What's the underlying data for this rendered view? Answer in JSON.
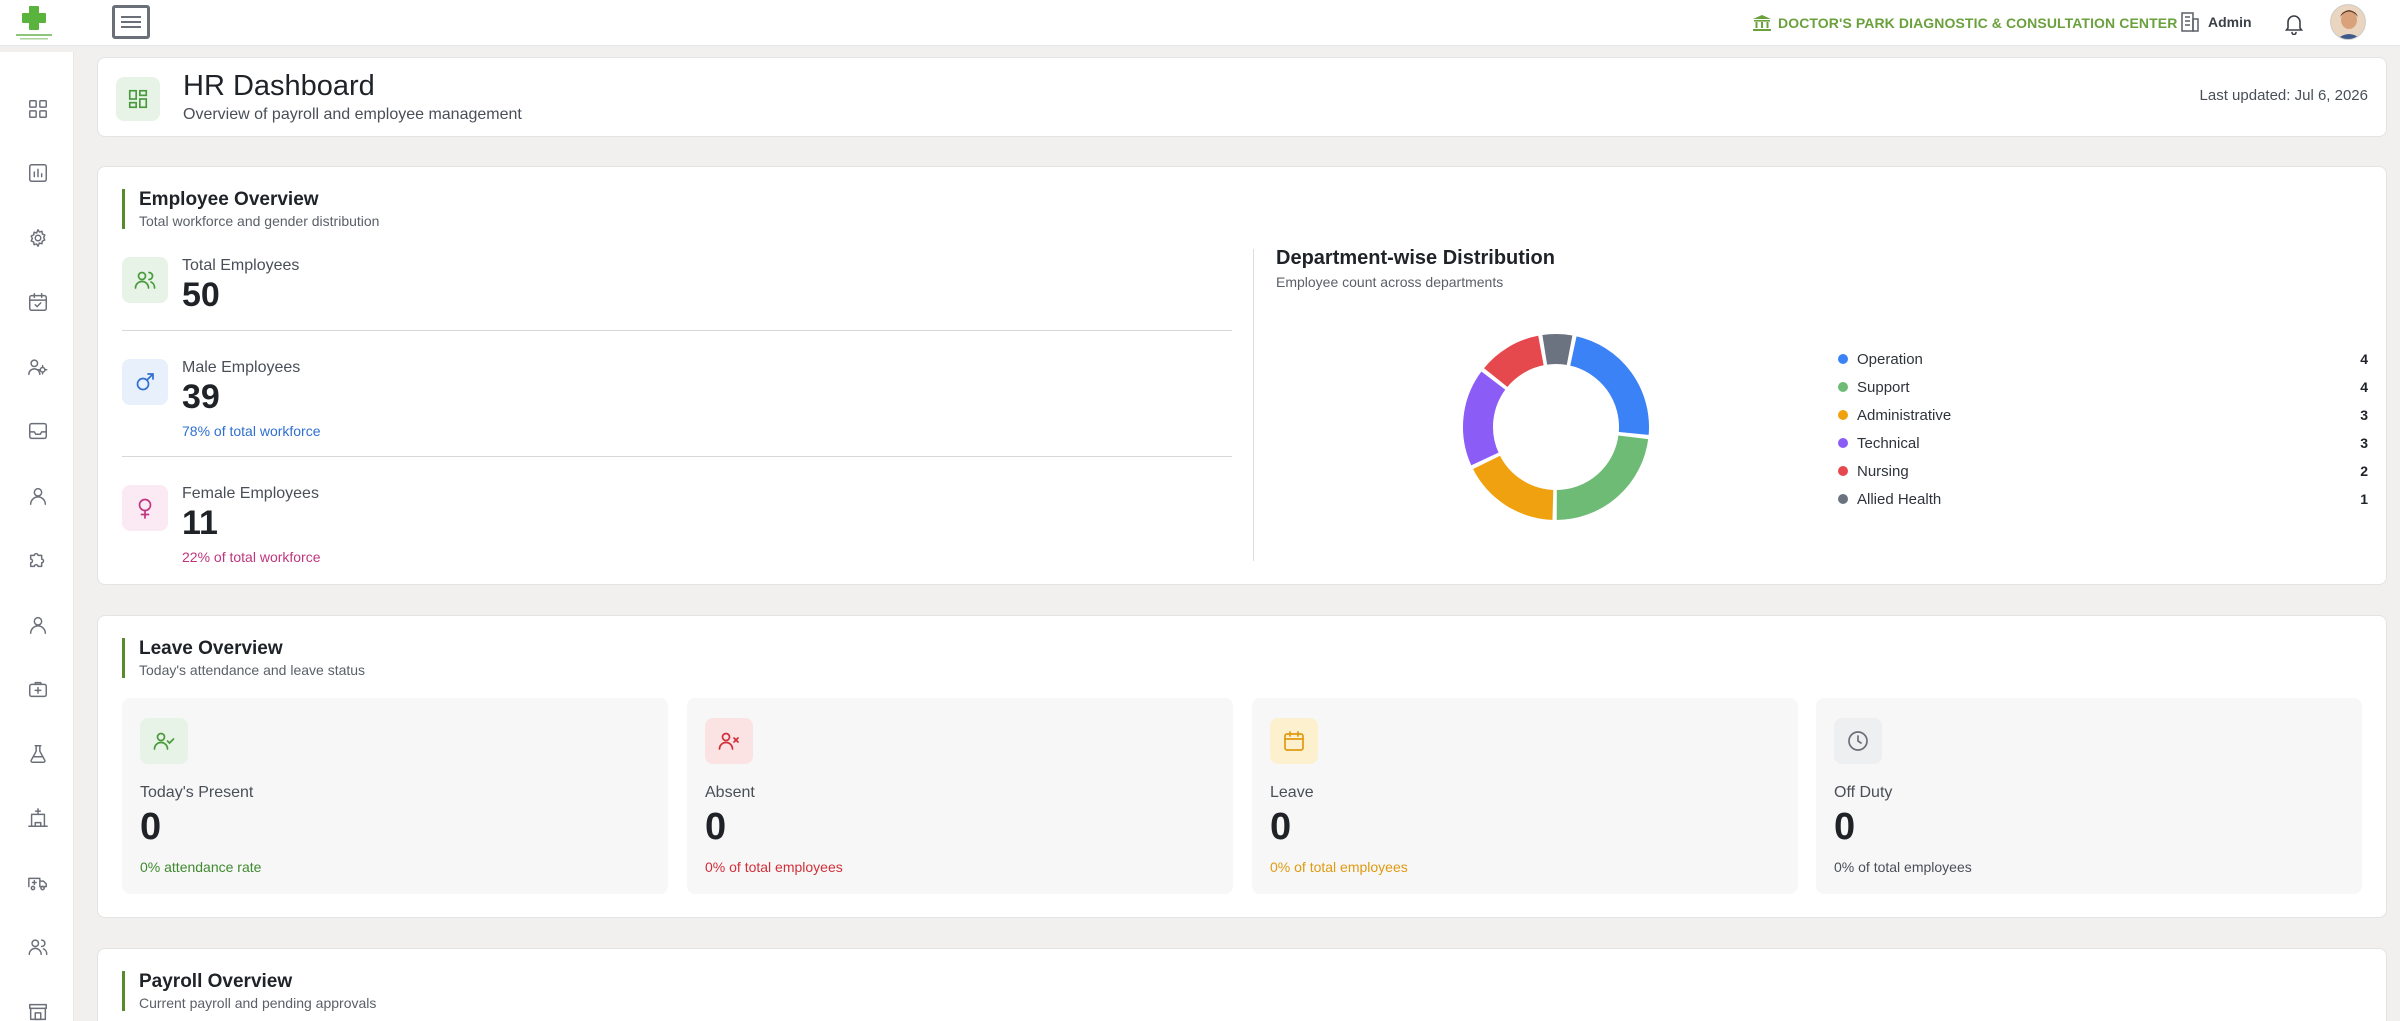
{
  "topbar": {
    "center_name": "DOCTOR'S PARK DIAGNOSTIC & CONSULTATION CENTER",
    "user_label": "Admin",
    "brand_color": "#6aa13d"
  },
  "sidebar": {
    "icons": [
      "grid-icon",
      "bar-chart-icon",
      "settings-icon",
      "calendar-check-icon",
      "users-cog-icon",
      "inbox-icon",
      "user-icon",
      "puzzle-icon",
      "user-icon",
      "medical-case-icon",
      "flask-icon",
      "hospital-icon",
      "ambulance-icon",
      "users-icon",
      "store-icon"
    ]
  },
  "header": {
    "title": "HR Dashboard",
    "subtitle": "Overview of payroll and employee management",
    "last_updated": "Last updated: Jul 6, 2026"
  },
  "employee_overview": {
    "title": "Employee Overview",
    "subtitle": "Total workforce and gender distribution",
    "total": {
      "label": "Total Employees",
      "value": "50"
    },
    "male": {
      "label": "Male Employees",
      "value": "39",
      "note": "78% of total workforce",
      "note_color": "#2f6fd1"
    },
    "female": {
      "label": "Female Employees",
      "value": "11",
      "note": "22% of total workforce",
      "note_color": "#c0367e"
    }
  },
  "department_distribution": {
    "title": "Department-wise Distribution",
    "subtitle": "Employee count across departments"
  },
  "chart_data": {
    "type": "pie",
    "variant": "donut",
    "categories": [
      "Operation",
      "Support",
      "Administrative",
      "Technical",
      "Nursing",
      "Allied Health"
    ],
    "values": [
      4,
      4,
      3,
      3,
      2,
      1
    ],
    "colors": [
      "#3b82f6",
      "#6dbb75",
      "#f0a10f",
      "#8b5cf6",
      "#e5484d",
      "#6b7280"
    ],
    "legend_position": "right"
  },
  "leave_overview": {
    "title": "Leave Overview",
    "subtitle": "Today's attendance and leave status",
    "tiles": [
      {
        "label": "Today's Present",
        "value": "0",
        "note": "0% attendance rate",
        "note_color": "#3f8a2e",
        "icon": "user-check-icon"
      },
      {
        "label": "Absent",
        "value": "0",
        "note": "0% of total employees",
        "note_color": "#d12f3a",
        "icon": "user-x-icon"
      },
      {
        "label": "Leave",
        "value": "0",
        "note": "0% of total employees",
        "note_color": "#e09a10",
        "icon": "calendar-icon"
      },
      {
        "label": "Off Duty",
        "value": "0",
        "note": "0% of total employees",
        "note_color": "#4a4f57",
        "icon": "clock-icon"
      }
    ]
  },
  "payroll_overview": {
    "title": "Payroll Overview",
    "subtitle": "Current payroll and pending approvals"
  }
}
